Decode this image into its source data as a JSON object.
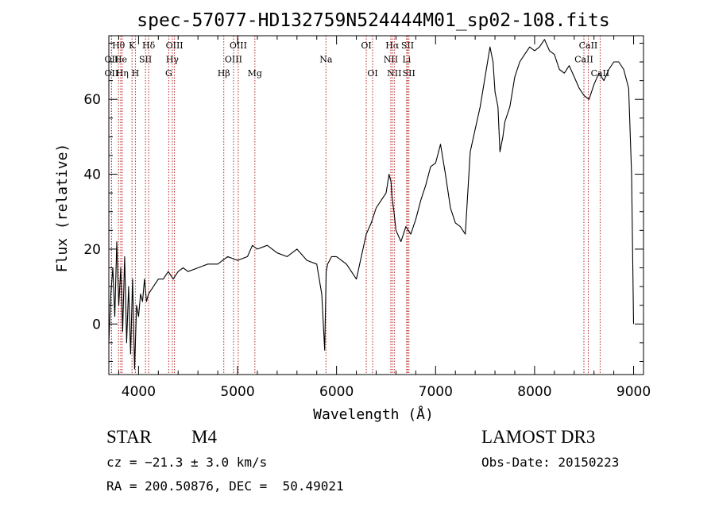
{
  "chart_data": {
    "type": "line",
    "title": "spec-57077-HD132759N524444M01_sp02-108.fits",
    "xlabel": "Wavelength (Å)",
    "ylabel": "Flux (relative)",
    "xlim": [
      3700,
      9100
    ],
    "ylim": [
      -13.5,
      77
    ],
    "xticks": [
      4000,
      5000,
      6000,
      7000,
      8000,
      9000
    ],
    "yticks": [
      0,
      20,
      40,
      60
    ],
    "grid": false,
    "legend": "none",
    "series": [
      {
        "name": "flux",
        "x": [
          3700,
          3720,
          3740,
          3760,
          3780,
          3800,
          3820,
          3840,
          3860,
          3880,
          3900,
          3920,
          3940,
          3960,
          3980,
          4000,
          4020,
          4040,
          4060,
          4080,
          4100,
          4150,
          4200,
          4250,
          4300,
          4350,
          4400,
          4450,
          4500,
          4600,
          4700,
          4800,
          4850,
          4900,
          5000,
          5100,
          5150,
          5200,
          5300,
          5400,
          5500,
          5600,
          5700,
          5800,
          5850,
          5880,
          5895,
          5910,
          5950,
          6000,
          6100,
          6150,
          6200,
          6250,
          6300,
          6350,
          6400,
          6450,
          6500,
          6530,
          6550,
          6560,
          6580,
          6600,
          6650,
          6700,
          6750,
          6800,
          6850,
          6900,
          6950,
          7000,
          7020,
          7050,
          7100,
          7150,
          7200,
          7250,
          7300,
          7350,
          7400,
          7450,
          7500,
          7550,
          7580,
          7600,
          7630,
          7650,
          7680,
          7700,
          7750,
          7800,
          7850,
          7900,
          7950,
          8000,
          8050,
          8100,
          8150,
          8200,
          8250,
          8300,
          8350,
          8400,
          8450,
          8500,
          8550,
          8600,
          8650,
          8700,
          8750,
          8800,
          8850,
          8900,
          8950,
          8980,
          9000
        ],
        "y": [
          -5,
          8,
          15,
          2,
          22,
          5,
          15,
          -2,
          18,
          -5,
          10,
          -8,
          12,
          -12,
          5,
          2,
          8,
          6,
          12,
          6,
          8,
          10,
          12,
          12,
          14,
          12,
          14,
          15,
          14,
          15,
          16,
          16,
          17,
          18,
          17,
          18,
          21,
          20,
          21,
          19,
          18,
          20,
          17,
          16,
          8,
          -7,
          14,
          16,
          18,
          18,
          16,
          14,
          12,
          18,
          24,
          27,
          31,
          33,
          35,
          40,
          38,
          34,
          30,
          25,
          22,
          26,
          24,
          28,
          33,
          37,
          42,
          43,
          45,
          48,
          40,
          31,
          27,
          26,
          24,
          46,
          52,
          58,
          66,
          74,
          70,
          62,
          58,
          46,
          50,
          54,
          58,
          66,
          70,
          72,
          74,
          73,
          74,
          76,
          73,
          72,
          68,
          67,
          69,
          66,
          63,
          61,
          60,
          64,
          67,
          65,
          68,
          70,
          70,
          68,
          63,
          40,
          0
        ]
      }
    ],
    "lines": [
      {
        "label": "Hθ",
        "x": 3798,
        "row": 1
      },
      {
        "label": "OII",
        "x": 3727,
        "row": 2
      },
      {
        "label": "OII",
        "x": 3727,
        "row": 3
      },
      {
        "label": "He",
        "x": 3820,
        "row": 2
      },
      {
        "label": "Hη",
        "x": 3835,
        "row": 3
      },
      {
        "label": "K",
        "x": 3934,
        "row": 1
      },
      {
        "label": "H",
        "x": 3968,
        "row": 3
      },
      {
        "label": "SII",
        "x": 4070,
        "row": 2
      },
      {
        "label": "Hδ",
        "x": 4102,
        "row": 1
      },
      {
        "label": "OIII",
        "x": 4363,
        "row": 1
      },
      {
        "label": "Hγ",
        "x": 4341,
        "row": 2
      },
      {
        "label": "G",
        "x": 4305,
        "row": 3
      },
      {
        "label": "Hβ",
        "x": 4861,
        "row": 3
      },
      {
        "label": "OIII",
        "x": 5007,
        "row": 1
      },
      {
        "label": "OIII",
        "x": 4959,
        "row": 2
      },
      {
        "label": "Mg",
        "x": 5175,
        "row": 3
      },
      {
        "label": "Na",
        "x": 5893,
        "row": 2
      },
      {
        "label": "OI",
        "x": 6300,
        "row": 1
      },
      {
        "label": "OI",
        "x": 6364,
        "row": 3
      },
      {
        "label": "Hα",
        "x": 6563,
        "row": 1
      },
      {
        "label": "SII",
        "x": 6717,
        "row": 1
      },
      {
        "label": "NII",
        "x": 6548,
        "row": 2
      },
      {
        "label": "Li",
        "x": 6708,
        "row": 2
      },
      {
        "label": "NII",
        "x": 6583,
        "row": 3
      },
      {
        "label": "SII",
        "x": 6731,
        "row": 3
      },
      {
        "label": "CaII",
        "x": 8542,
        "row": 1
      },
      {
        "label": "CaII",
        "x": 8498,
        "row": 2
      },
      {
        "label": "CaII",
        "x": 8662,
        "row": 3
      }
    ],
    "annotations": [
      "STAR",
      "M4",
      "cz = -21.3 ± 3.0 km/s",
      "RA = 200.50876, DEC = 50.49021",
      "LAMOST DR3",
      "Obs-Date: 20150223"
    ]
  },
  "info": {
    "class_label": "STAR",
    "subclass_label": "M4",
    "velocity": "cz = −21.3 ± 3.0 km/s",
    "coords": "RA = 200.50876, DEC =  50.49021",
    "survey": "LAMOST DR3",
    "obs_date": "Obs-Date: 20150223"
  }
}
